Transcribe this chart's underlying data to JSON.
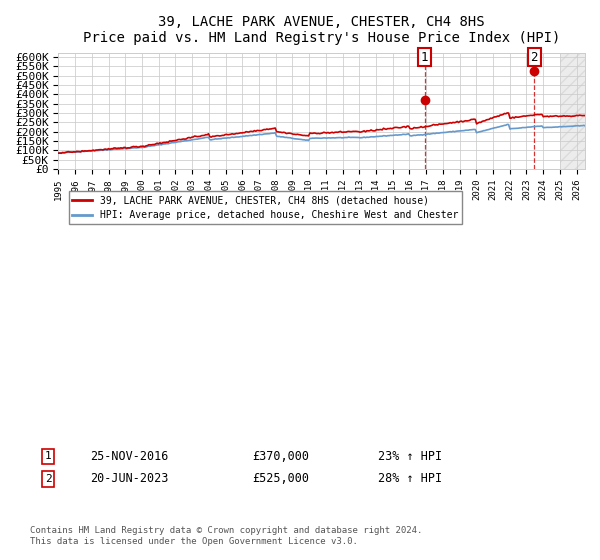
{
  "title": "39, LACHE PARK AVENUE, CHESTER, CH4 8HS",
  "subtitle": "Price paid vs. HM Land Registry's House Price Index (HPI)",
  "ylabel_ticks": [
    "£0",
    "£50K",
    "£100K",
    "£150K",
    "£200K",
    "£250K",
    "£300K",
    "£350K",
    "£400K",
    "£450K",
    "£500K",
    "£550K",
    "£600K"
  ],
  "ylim": [
    0,
    620000
  ],
  "xlim_start": 1995.0,
  "xlim_end": 2026.5,
  "sale1_date": 2016.9,
  "sale1_price": 370000,
  "sale1_label": "1",
  "sale1_pct": "23%",
  "sale2_date": 2023.47,
  "sale2_price": 525000,
  "sale2_label": "2",
  "sale2_pct": "28%",
  "legend_line1": "39, LACHE PARK AVENUE, CHESTER, CH4 8HS (detached house)",
  "legend_line2": "HPI: Average price, detached house, Cheshire West and Chester",
  "note1_label": "1",
  "note1_date": "25-NOV-2016",
  "note1_price": "£370,000",
  "note1_pct": "23% ↑ HPI",
  "note2_label": "2",
  "note2_date": "20-JUN-2023",
  "note2_price": "£525,000",
  "note2_pct": "28% ↑ HPI",
  "copyright": "Contains HM Land Registry data © Crown copyright and database right 2024.\nThis data is licensed under the Open Government Licence v3.0.",
  "red_color": "#cc0000",
  "blue_color": "#6699cc",
  "hatch_color": "#cccccc",
  "background_color": "#ffffff",
  "grid_color": "#cccccc"
}
